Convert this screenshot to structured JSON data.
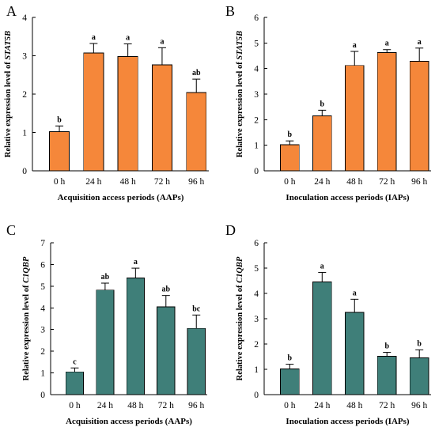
{
  "chart_data": [
    {
      "panel": "A",
      "type": "bar",
      "categories": [
        "0 h",
        "24 h",
        "48 h",
        "72 h",
        "96 h"
      ],
      "values": [
        1.02,
        3.07,
        2.98,
        2.76,
        2.04
      ],
      "errors": [
        0.15,
        0.25,
        0.33,
        0.45,
        0.35
      ],
      "significance": [
        "b",
        "a",
        "a",
        "a",
        "ab"
      ],
      "color": "#F5873A",
      "title": "",
      "xlabel": "Acquisition access periods (AAPs)",
      "ylabel_prefix": "Relative expression level of ",
      "ylabel_gene": "STAT5B",
      "ylim": [
        0,
        4
      ],
      "yticks": [
        0,
        1,
        2,
        3,
        4
      ],
      "grid": false,
      "legend": "none"
    },
    {
      "panel": "B",
      "type": "bar",
      "categories": [
        "0 h",
        "24 h",
        "48 h",
        "72 h",
        "96 h"
      ],
      "values": [
        1.02,
        2.15,
        4.12,
        4.62,
        4.28
      ],
      "errors": [
        0.15,
        0.22,
        0.55,
        0.12,
        0.52
      ],
      "significance": [
        "b",
        "b",
        "a",
        "a",
        "a"
      ],
      "color": "#F5873A",
      "title": "",
      "xlabel": "Inoculation access periods (IAPs)",
      "ylabel_prefix": "Relative expression level of ",
      "ylabel_gene": "STAT5B",
      "ylim": [
        0,
        6
      ],
      "yticks": [
        0,
        1,
        2,
        3,
        4,
        5,
        6
      ],
      "grid": false,
      "legend": "none"
    },
    {
      "panel": "C",
      "type": "bar",
      "categories": [
        "0 h",
        "24 h",
        "48 h",
        "72 h",
        "96 h"
      ],
      "values": [
        1.05,
        4.82,
        5.38,
        4.05,
        3.05
      ],
      "errors": [
        0.18,
        0.32,
        0.45,
        0.52,
        0.62
      ],
      "significance": [
        "c",
        "ab",
        "a",
        "ab",
        "bc"
      ],
      "color": "#3F7F79",
      "title": "",
      "xlabel": "Acquisition access periods (AAPs)",
      "ylabel_prefix": "Relative expression level of ",
      "ylabel_gene": "C1QBP",
      "ylim": [
        0,
        7
      ],
      "yticks": [
        0,
        1,
        2,
        3,
        4,
        5,
        6,
        7
      ],
      "grid": false,
      "legend": "none"
    },
    {
      "panel": "D",
      "type": "bar",
      "categories": [
        "0 h",
        "24 h",
        "48 h",
        "72 h",
        "96 h"
      ],
      "values": [
        1.02,
        4.45,
        3.25,
        1.52,
        1.45
      ],
      "errors": [
        0.18,
        0.38,
        0.52,
        0.15,
        0.32
      ],
      "significance": [
        "b",
        "a",
        "a",
        "b",
        "b"
      ],
      "color": "#3F7F79",
      "title": "",
      "xlabel": "Inoculation access periods (IAPs)",
      "ylabel_prefix": "Relative expression level of ",
      "ylabel_gene": "C1QBP",
      "ylim": [
        0,
        6
      ],
      "yticks": [
        0,
        1,
        2,
        3,
        4,
        5,
        6
      ],
      "grid": false,
      "legend": "none"
    }
  ]
}
